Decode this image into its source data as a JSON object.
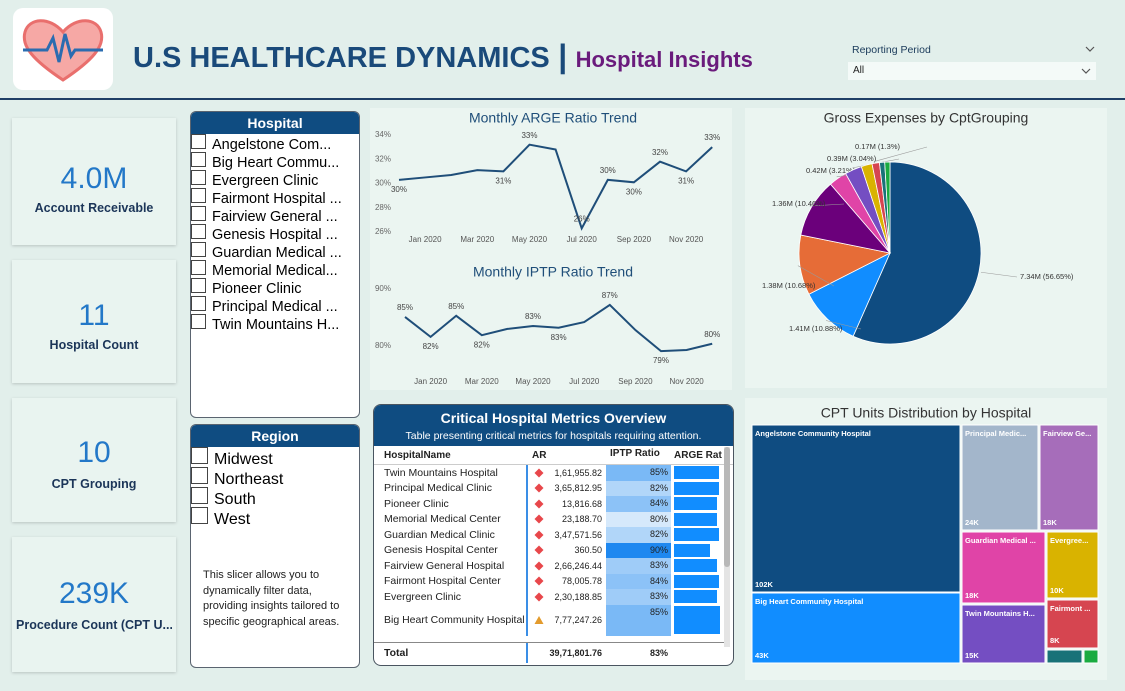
{
  "header": {
    "title": "U.S HEALTHCARE DYNAMICS",
    "separator": "|",
    "subtitle": "Hospital Insights"
  },
  "filter": {
    "label": "Reporting Period",
    "value": "All"
  },
  "kpis": [
    {
      "value": "4.0M",
      "label": "Account Receivable"
    },
    {
      "value": "11",
      "label": "Hospital Count"
    },
    {
      "value": "10",
      "label": "CPT Grouping"
    },
    {
      "value": "239K",
      "label": "Procedure Count (CPT U..."
    }
  ],
  "hospital_slicer": {
    "title": "Hospital",
    "items": [
      "Angelstone Com...",
      "Big Heart Commu...",
      "Evergreen Clinic",
      "Fairmont Hospital ...",
      "Fairview General ...",
      "Genesis Hospital ...",
      "Guardian Medical ...",
      "Memorial Medical...",
      "Pioneer Clinic",
      "Principal Medical ...",
      "Twin Mountains H..."
    ]
  },
  "region_slicer": {
    "title": "Region",
    "items": [
      "Midwest",
      "Northeast",
      "South",
      "West"
    ],
    "note": "This slicer allows you to dynamically filter data, providing insights tailored to specific geographical areas."
  },
  "chart_data": [
    {
      "type": "line",
      "title": "Monthly ARGE Ratio Trend",
      "color": "#1f4e79",
      "categories": [
        null,
        "Jan 2020",
        null,
        "Mar 2020",
        null,
        "May 2020",
        null,
        "Jul 2020",
        null,
        "Sep 2020",
        null,
        "Nov 2020",
        null
      ],
      "values": [
        30.3,
        30.5,
        30.7,
        31.1,
        31.0,
        33.2,
        32.8,
        26.3,
        30.3,
        30.1,
        31.8,
        31.0,
        33.0
      ],
      "value_labels": [
        "30%",
        null,
        null,
        null,
        "31%",
        "33%",
        null,
        "26%",
        "30%",
        "30%",
        "32%",
        "31%",
        "33%"
      ],
      "ylim": [
        26,
        34
      ],
      "yticks": [
        {
          "value": 26,
          "label": "26%"
        },
        {
          "value": 28,
          "label": "28%"
        },
        {
          "value": 30,
          "label": "30%"
        },
        {
          "value": 32,
          "label": "32%"
        },
        {
          "value": 34,
          "label": "34%"
        }
      ]
    },
    {
      "type": "line",
      "title": "Monthly IPTP Ratio Trend",
      "color": "#1f4e79",
      "categories": [
        null,
        "Jan 2020",
        null,
        "Mar 2020",
        null,
        "May 2020",
        null,
        "Jul 2020",
        null,
        "Sep 2020",
        null,
        "Nov 2020",
        null
      ],
      "values": [
        85.1,
        81.6,
        85.3,
        81.9,
        83.0,
        83.5,
        83.2,
        84.2,
        87.2,
        82.8,
        79.1,
        79.3,
        80.4
      ],
      "value_labels": [
        "85%",
        "82%",
        "85%",
        "82%",
        null,
        "83%",
        "83%",
        null,
        "87%",
        null,
        "79%",
        null,
        "80%"
      ],
      "ylim": [
        76,
        90
      ],
      "yticks": [
        {
          "value": 80,
          "label": "80%"
        },
        {
          "value": 90,
          "label": "90%"
        }
      ]
    },
    {
      "type": "pie",
      "title": "Gross Expenses by CptGrouping",
      "values": [
        7.34,
        1.41,
        1.38,
        1.36,
        0.42,
        0.39,
        0.25,
        0.17,
        0.12,
        0.12
      ],
      "value_labels": [
        "7.34M (56.65%)",
        "1.41M (10.88%)",
        "1.38M (10.68%)",
        "1.36M (10.46%)",
        "0.42M (3.21%)",
        "0.39M (3.04%)",
        null,
        "0.17M (1.3%)",
        null,
        null
      ],
      "colors": [
        "#0f4c81",
        "#118dff",
        "#e66c37",
        "#6b007b",
        "#e044a7",
        "#744ec2",
        "#d9b300",
        "#d64550",
        "#197278",
        "#1aab40"
      ]
    },
    {
      "type": "treemap",
      "title": "CPT Units Distribution by Hospital",
      "categories": [
        "Angelstone Community Hospital",
        "Big Heart Community Hospital",
        "Principal Medic...",
        "Fairview Ge...",
        "Guardian Medical ...",
        "Evergree...",
        "Twin Mountains H...",
        "Fairmont ...",
        null,
        null
      ],
      "values": [
        102000,
        43000,
        24000,
        18000,
        18000,
        10000,
        15000,
        8000,
        2500,
        1200
      ],
      "value_labels": [
        "102K",
        "43K",
        "24K",
        "18K",
        "18K",
        "10K",
        "15K",
        "8K",
        null,
        null
      ],
      "colors": [
        "#0f4c81",
        "#118dff",
        "#a3b6cb",
        "#a66dba",
        "#e044a7",
        "#d9b300",
        "#744ec2",
        "#d64550",
        "#197278",
        "#1aab40"
      ]
    }
  ],
  "table": {
    "title": "Critical Hospital Metrics Overview",
    "subtitle": "Table presenting critical metrics for hospitals requiring attention.",
    "columns": [
      "HospitalName",
      "AR",
      "IPTP Ratio",
      "ARGE Rat"
    ],
    "rows": [
      [
        "Twin Mountains Hospital",
        "1,61,955.82",
        "85%"
      ],
      [
        "Principal Medical Clinic",
        "3,65,812.95",
        "82%"
      ],
      [
        "Pioneer Clinic",
        "13,816.68",
        "84%"
      ],
      [
        "Memorial Medical Center",
        "23,188.70",
        "80%"
      ],
      [
        "Guardian Medical Clinic",
        "3,47,571.56",
        "82%"
      ],
      [
        "Genesis Hospital Center",
        "360.50",
        "90%"
      ],
      [
        "Fairview General Hospital",
        "2,66,246.44",
        "83%"
      ],
      [
        "Fairmont Hospital Center",
        "78,005.78",
        "84%"
      ],
      [
        "Evergreen Clinic",
        "2,30,188.85",
        "83%"
      ],
      [
        "Big Heart Community Hospital",
        "7,77,247.26",
        "85%"
      ]
    ],
    "ar_icons": [
      "diamond",
      "diamond",
      "diamond",
      "diamond",
      "diamond",
      "diamond",
      "diamond",
      "diamond",
      "diamond",
      "triangle"
    ],
    "arge_bars": [
      32,
      32,
      31,
      31,
      32,
      26,
      31,
      32,
      31,
      33
    ],
    "total": [
      "Total",
      "39,71,801.76",
      "83%"
    ]
  }
}
